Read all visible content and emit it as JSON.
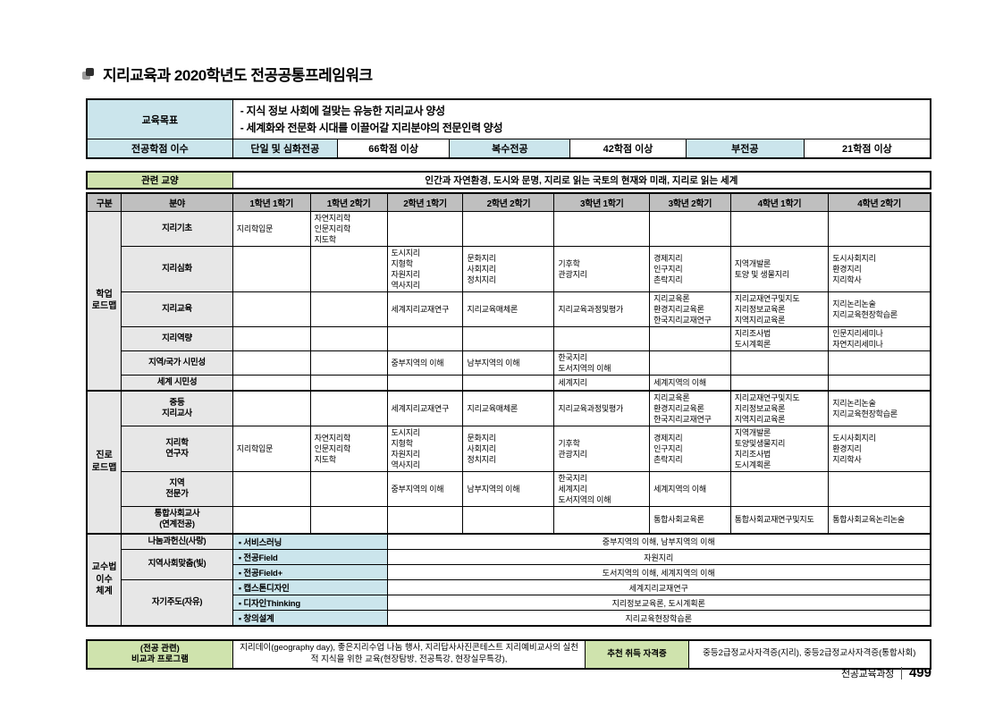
{
  "title": "지리교육과 2020학년도 전공공통프레임워크",
  "colors": {
    "highlight_blue": "#cbe5ec",
    "highlight_green": "#cfe3ad",
    "header_gray": "#bfbfbf",
    "label_gray": "#e7e7e7"
  },
  "goals": {
    "objective_label": "교육목표",
    "objective_text": "- 지식 정보 사회에 걸맞는 유능한 지리교사 양성\n- 세계화와 전문화 시대를 이끌어갈 지리분야의 전문인력 양성",
    "credits_label": "전공학점 이수",
    "credit_cells": [
      {
        "text": "단일 및 심화전공",
        "highlight": true
      },
      {
        "text": "66학점 이상",
        "highlight": false
      },
      {
        "text": "복수전공",
        "highlight": true
      },
      {
        "text": "42학점 이상",
        "highlight": false
      },
      {
        "text": "부전공",
        "highlight": true
      },
      {
        "text": "21학점 이상",
        "highlight": false
      }
    ]
  },
  "liberal": {
    "label": "관련 교양",
    "value": "인간과 자연환경, 도시와 문명, 지리로 읽는 국토의 현재와 미래, 지리로 읽는 세계"
  },
  "curriculum": {
    "headers": [
      "구분",
      "분야",
      "1학년 1학기",
      "1학년 2학기",
      "2학년 1학기",
      "2학년 2학기",
      "3학년 1학기",
      "3학년 2학기",
      "4학년 1학기",
      "4학년 2학기"
    ],
    "sections": [
      {
        "name": "학업\n로드맵",
        "rows": [
          {
            "category": "지리기초",
            "cells": [
              "지리학입문",
              "자연지리학\n인문지리학\n지도학",
              "",
              "",
              "",
              "",
              "",
              ""
            ]
          },
          {
            "category": "지리심화",
            "cells": [
              "",
              "",
              "도시지리\n지형학\n자원지리\n역사지리",
              "문화지리\n사회지리\n정치지리",
              "기후학\n관광지리",
              "경제지리\n인구지리\n촌락지리",
              "지역개발론\n토양 및 생물지리",
              "도시사회지리\n환경지리\n지리학사"
            ]
          },
          {
            "category": "지리교육",
            "cells": [
              "",
              "",
              "세계지리교재연구",
              "지리교육매체론",
              "지리교육과정및평가",
              "지리교육론\n환경지리교육론\n한국지리교재연구",
              "지리교재연구및지도\n지리정보교육론\n지역지리교육론",
              "지리논리논술\n지리교육현장학습론"
            ]
          },
          {
            "category": "지리역량",
            "cells": [
              "",
              "",
              "",
              "",
              "",
              "",
              "지리조사법\n도시계획론",
              "인문지리세미나\n자연지리세미나"
            ]
          },
          {
            "category": "지역/국가 시민성",
            "cells": [
              "",
              "",
              "중부지역의 이해",
              "남부지역의 이해",
              "한국지리\n도서지역의 이해",
              "",
              "",
              ""
            ]
          },
          {
            "category": "세계 시민성",
            "cells": [
              "",
              "",
              "",
              "",
              "세계지리",
              "세계지역의 이해",
              "",
              ""
            ]
          }
        ]
      },
      {
        "name": "진로\n로드맵",
        "rows": [
          {
            "category": "중등\n지리교사",
            "cells": [
              "",
              "",
              "세계지리교재연구",
              "지리교육매체론",
              "지리교육과정및평가",
              "지리교육론\n환경지리교육론\n한국지리교재연구",
              "지리교재연구및지도\n지리정보교육론\n지역지리교육론",
              "지리논리논술\n지리교육현장학습론"
            ]
          },
          {
            "category": "지리학\n연구자",
            "cells": [
              "지리학입문",
              "자연지리학\n인문지리학\n지도학",
              "도시지리\n지형학\n자원지리\n역사지리",
              "문화지리\n사회지리\n정치지리",
              "기후학\n관광지리",
              "경제지리\n인구지리\n촌락지리",
              "지역개발론\n토양및생물지리\n지리조사법\n도시계획론",
              "도시사회지리\n환경지리\n지리학사"
            ]
          },
          {
            "category": "지역\n전문가",
            "cells": [
              "",
              "",
              "중부지역의 이해",
              "남부지역의 이해",
              "한국지리\n세계지리\n도서지역의 이해",
              "세계지역의 이해",
              "",
              ""
            ]
          },
          {
            "category": "통합사회교사\n(연계전공)",
            "cells": [
              "",
              "",
              "",
              "",
              "",
              "통합사회교육론",
              "통합사회교재연구및지도",
              "통합사회교육논리논술"
            ]
          }
        ]
      }
    ],
    "pedagogy": {
      "name": "교수법\n이수\n체계",
      "groups": [
        {
          "name": "나눔과헌신(사랑)",
          "items": [
            {
              "label": "▪ 서비스러닝",
              "value": "중부지역의 이해, 남부지역의 이해"
            }
          ]
        },
        {
          "name": "지역사회맞춤(빛)",
          "items": [
            {
              "label": "▪ 전공Field",
              "value": "자원지리"
            },
            {
              "label": "▪ 전공Field+",
              "value": "도서지역의 이해, 세계지역의 이해"
            }
          ]
        },
        {
          "name": "자기주도(자유)",
          "items": [
            {
              "label": "▪ 캡스톤디자인",
              "value": "세계지리교재연구"
            },
            {
              "label": "▪ 디자인Thinking",
              "value": "지리정보교육론, 도시계획론"
            },
            {
              "label": "▪ 창의설계",
              "value": "지리교육현장학습론"
            }
          ]
        }
      ]
    }
  },
  "extracurricular": {
    "label": "(전공 관련)\n비교과 프로그램",
    "value": "지리데이(geography day), 좋은지리수업 나눔 행사, 지리답사사진콘테스트 지리예비교사의 실천적 지식을 위한 교육(현장탐방, 전공특강, 현장실무특강),",
    "cert_label": "추천 취득 자격증",
    "cert_value": "중등2급정교사자격증(지리), 중등2급정교사자격증(통합사회)"
  },
  "footer": {
    "section": "전공교육과정",
    "page": "499"
  }
}
